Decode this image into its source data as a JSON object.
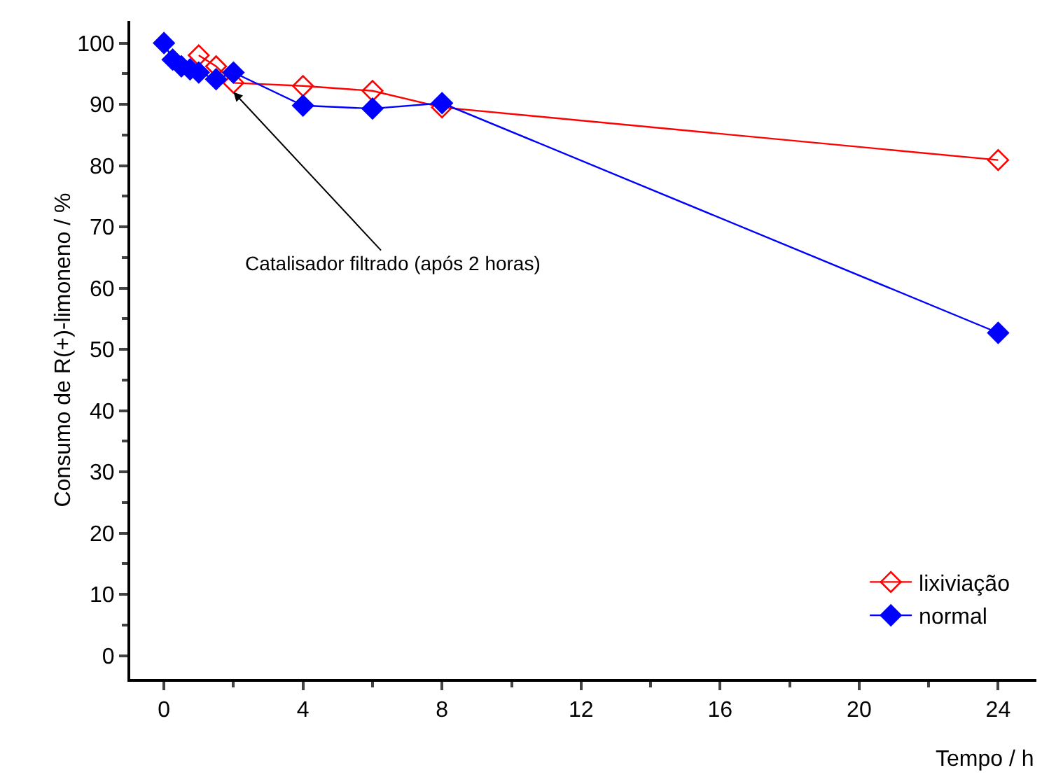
{
  "chart_data": {
    "type": "line",
    "xlabel": "Tempo / h",
    "ylabel": "Consumo de R(+)-limoneno / %",
    "series": [
      {
        "name": "lixiviação",
        "color": "#ff0000",
        "marker": "diamond-open",
        "x": [
          1,
          1.5,
          2,
          4,
          6,
          8,
          24
        ],
        "values": [
          98,
          96.2,
          93.5,
          93,
          92.2,
          89.5,
          80.9
        ]
      },
      {
        "name": "normal",
        "color": "#0000ff",
        "marker": "diamond",
        "x": [
          0,
          0.25,
          0.5,
          0.75,
          1,
          1.5,
          2,
          4,
          6,
          8,
          24
        ],
        "values": [
          100,
          97.3,
          96.2,
          95.7,
          95.2,
          94.1,
          95.2,
          89.8,
          89.3,
          90.2,
          52.7
        ]
      }
    ],
    "annotations": [
      {
        "text": "Catalisador filtrado (após 2 horas)",
        "x": 2,
        "y": 92
      }
    ],
    "xlim": [
      -0.97,
      25.1
    ],
    "xticks": [
      0,
      4,
      8,
      12,
      16,
      20,
      24
    ],
    "ylim": [
      -3.8,
      103.6
    ],
    "yticks": [
      0,
      10,
      20,
      30,
      40,
      50,
      60,
      70,
      80,
      90,
      100
    ],
    "grid": false,
    "legend": "bottom right",
    "line_style": "solid"
  }
}
